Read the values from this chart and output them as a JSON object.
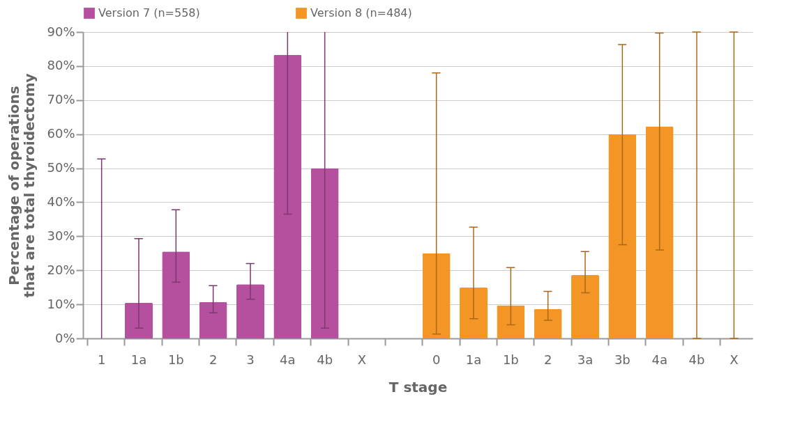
{
  "chart_data": {
    "type": "bar",
    "xlabel": "T stage",
    "ylabel": "Percentage of operations\nthat are total thyroidectomy",
    "categories": [
      "1",
      "1a",
      "1b",
      "2",
      "3",
      "4a",
      "4b",
      "X",
      null,
      "0",
      "1a",
      "1b",
      "2",
      "3a",
      "3b",
      "4a",
      "4b",
      "X"
    ],
    "series": [
      {
        "name": "Version 7    (n=558)",
        "color": "#b5509f",
        "values": [
          0,
          10.5,
          25.5,
          10.7,
          15.9,
          83.3,
          50,
          null,
          null,
          null,
          null,
          null,
          null,
          null,
          null,
          null,
          null,
          null
        ],
        "errors": [
          [
            0,
            52.7
          ],
          [
            3,
            29.3
          ],
          [
            16.5,
            37.8
          ],
          [
            7.5,
            15.5
          ],
          [
            11.5,
            22
          ],
          [
            36.5,
            90
          ],
          [
            3,
            90
          ],
          null,
          null,
          null,
          null,
          null,
          null,
          null,
          null,
          null,
          null,
          null
        ]
      },
      {
        "name": "Version 8    (n=484)",
        "color": "#f39626",
        "values": [
          null,
          null,
          null,
          null,
          null,
          null,
          null,
          null,
          null,
          25,
          15,
          9.7,
          8.6,
          18.6,
          60,
          62.3,
          0,
          0
        ],
        "errors": [
          null,
          null,
          null,
          null,
          null,
          null,
          null,
          null,
          null,
          [
            1.3,
            78
          ],
          [
            5.8,
            32.7
          ],
          [
            4,
            20.8
          ],
          [
            5.3,
            13.8
          ],
          [
            13.4,
            25.5
          ],
          [
            27.5,
            86.3
          ],
          [
            26,
            89.7
          ],
          [
            0,
            90
          ],
          [
            0,
            90
          ]
        ]
      }
    ],
    "ylim": [
      0,
      90
    ],
    "yticks": [
      {
        "value": 0,
        "label": "0%"
      },
      {
        "value": 10,
        "label": "10%"
      },
      {
        "value": 20,
        "label": "20%"
      },
      {
        "value": 30,
        "label": "30%"
      },
      {
        "value": 40,
        "label": "40%"
      },
      {
        "value": 50,
        "label": "50%"
      },
      {
        "value": 60,
        "label": "60%"
      },
      {
        "value": 70,
        "label": "70%"
      },
      {
        "value": 80,
        "label": "80%"
      },
      {
        "value": 90,
        "label": "90%"
      }
    ],
    "grid": "y",
    "legend": "top"
  }
}
